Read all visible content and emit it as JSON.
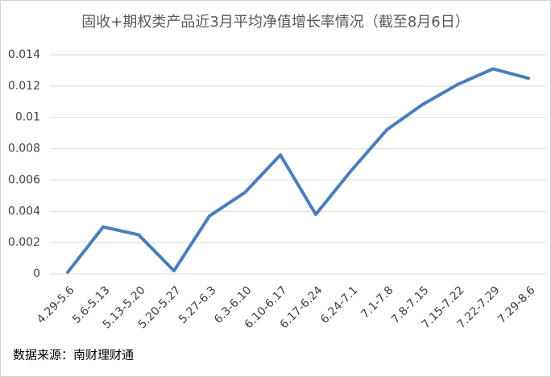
{
  "chart_data": {
    "type": "line",
    "title": "固收+期权类产品近3月平均净值增长率情况（截至8月6日）",
    "categories": [
      "4.29-5.6",
      "5.6-5.13",
      "5.13-5.20",
      "5.20-5.27",
      "5.27-6.3",
      "6.3-6.10",
      "6.10-6.17",
      "6.17-6.24",
      "6.24-7.1",
      "7.1-7.8",
      "7.8-7.15",
      "7.15-7.22",
      "7.22-7.29",
      "7.29-8.6"
    ],
    "values": [
      0.0001,
      0.003,
      0.0025,
      0.0002,
      0.0037,
      0.0052,
      0.0076,
      0.0038,
      0.0066,
      0.0092,
      0.0108,
      0.0121,
      0.0131,
      0.0125
    ],
    "color": "#4a7ebb",
    "ylim": [
      0,
      0.014
    ],
    "yticks": [
      0,
      0.002,
      0.004,
      0.006,
      0.008,
      0.01,
      0.012,
      0.014
    ],
    "grid": true,
    "source": "数据来源：南财理财通"
  }
}
